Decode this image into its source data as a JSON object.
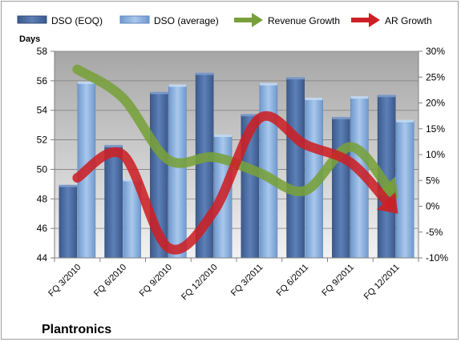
{
  "chart_data": {
    "type": "bar",
    "title": "Plantronics",
    "ylabel": "Days",
    "ylim": [
      44,
      58
    ],
    "y_ticks": [
      44,
      46,
      48,
      50,
      52,
      54,
      56,
      58
    ],
    "y2lim": [
      -10,
      30
    ],
    "y2_ticks": [
      "-10%",
      "-5%",
      "0%",
      "5%",
      "10%",
      "15%",
      "20%",
      "25%",
      "30%"
    ],
    "y2_values": [
      -10,
      -5,
      0,
      5,
      10,
      15,
      20,
      25,
      30
    ],
    "categories": [
      "FQ 3/2010",
      "FQ 6/2010",
      "FQ 9/2010",
      "FQ 12/2010",
      "FQ 3/2011",
      "FQ 6/2011",
      "FQ 9/2011",
      "FQ 12/2011"
    ],
    "legend_position": "top",
    "grid": true,
    "series": [
      {
        "name": "DSO (EOQ)",
        "kind": "bar",
        "axis": "left",
        "color": "#4f6fa4",
        "values": [
          48.9,
          51.6,
          55.2,
          56.5,
          53.7,
          56.2,
          53.5,
          55.0
        ]
      },
      {
        "name": "DSO (average)",
        "kind": "bar",
        "axis": "left",
        "color": "#8db3e2",
        "values": [
          55.9,
          49.3,
          55.7,
          52.3,
          55.8,
          54.8,
          54.9,
          53.3
        ]
      },
      {
        "name": "Revenue Growth",
        "kind": "line-arrow",
        "axis": "right",
        "color": "#77a03a",
        "values": [
          26.5,
          21,
          9,
          9.5,
          6.5,
          3,
          11.5,
          2
        ]
      },
      {
        "name": "AR Growth",
        "kind": "line-arrow",
        "axis": "right",
        "color": "#cc2026",
        "values": [
          5.5,
          10,
          -8,
          -1,
          17,
          12,
          8.5,
          -1
        ]
      }
    ]
  }
}
